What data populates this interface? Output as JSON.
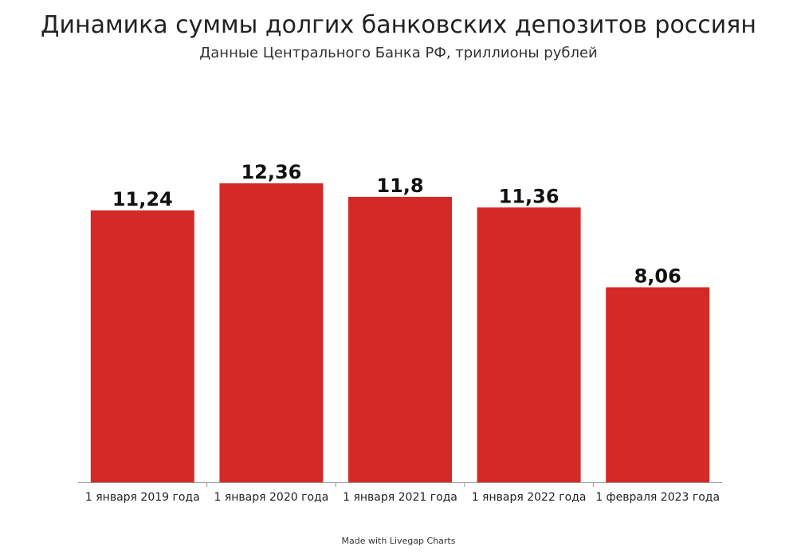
{
  "chart_data": {
    "type": "bar",
    "title": "Динамика суммы долгих банковских депозитов россиян",
    "subtitle": "Данные Центрального Банка РФ, триллионы рублей",
    "categories": [
      "1 января 2019 года",
      "1 января 2020 года",
      "1 января 2021 года",
      "1 января 2022 года",
      "1 февраля 2023 года"
    ],
    "values": [
      11.24,
      12.36,
      11.8,
      11.36,
      8.06
    ],
    "value_labels": [
      "11,24",
      "12,36",
      "11,8",
      "11,36",
      "8,06"
    ],
    "xlabel": "",
    "ylabel": "",
    "ylim": [
      0,
      14.5
    ],
    "grid": false,
    "legend": "none",
    "bar_color": "#d42a27",
    "axis_color": "#999999"
  },
  "footer": {
    "credit": "Made with Livegap Charts"
  }
}
